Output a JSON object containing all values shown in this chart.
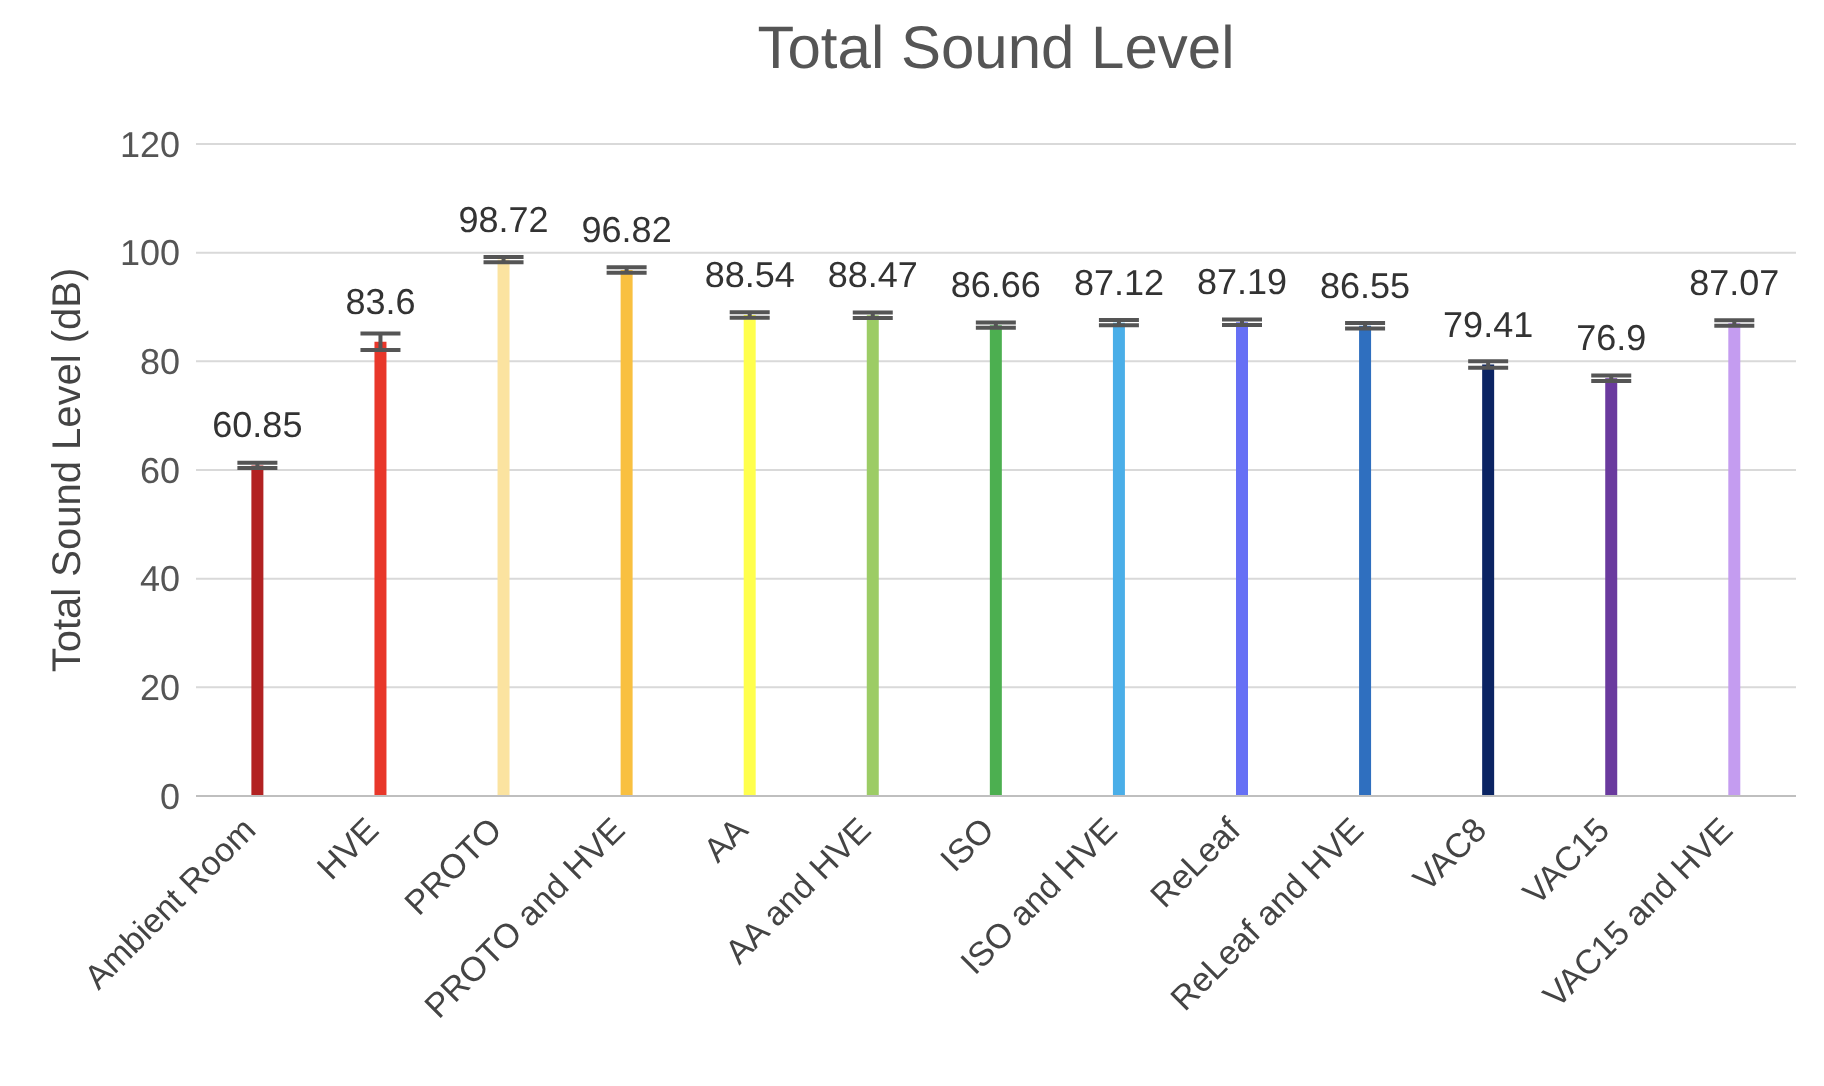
{
  "chart_data": {
    "type": "bar",
    "title": "Total Sound Level",
    "ylabel": "Total Sound Level (dB)",
    "categories": [
      "Ambient Room",
      "HVE",
      "PROTO",
      "PROTO and HVE",
      "AA",
      "AA and HVE",
      "ISO",
      "ISO and HVE",
      "ReLeaf",
      "ReLeaf and HVE",
      "VAC8",
      "VAC15",
      "VAC15 and HVE"
    ],
    "values": [
      60.85,
      83.6,
      98.72,
      96.82,
      88.54,
      88.47,
      86.66,
      87.12,
      87.19,
      86.55,
      79.41,
      76.9,
      87.07
    ],
    "errors": [
      0.5,
      1.5,
      0.5,
      0.5,
      0.5,
      0.5,
      0.5,
      0.5,
      0.5,
      0.5,
      0.6,
      0.5,
      0.5
    ],
    "colors": [
      "#b22222",
      "#e8372a",
      "#fbe3a0",
      "#f9c040",
      "#ffff4d",
      "#9ccc65",
      "#4caf50",
      "#4aaee8",
      "#6670f5",
      "#2f6fbf",
      "#0b2463",
      "#6a3a9e",
      "#c49cf0"
    ],
    "ylim": [
      0,
      120
    ],
    "yticks": [
      0,
      20,
      40,
      60,
      80,
      100,
      120
    ],
    "grid": "y",
    "data_labels": true,
    "legend": false
  }
}
